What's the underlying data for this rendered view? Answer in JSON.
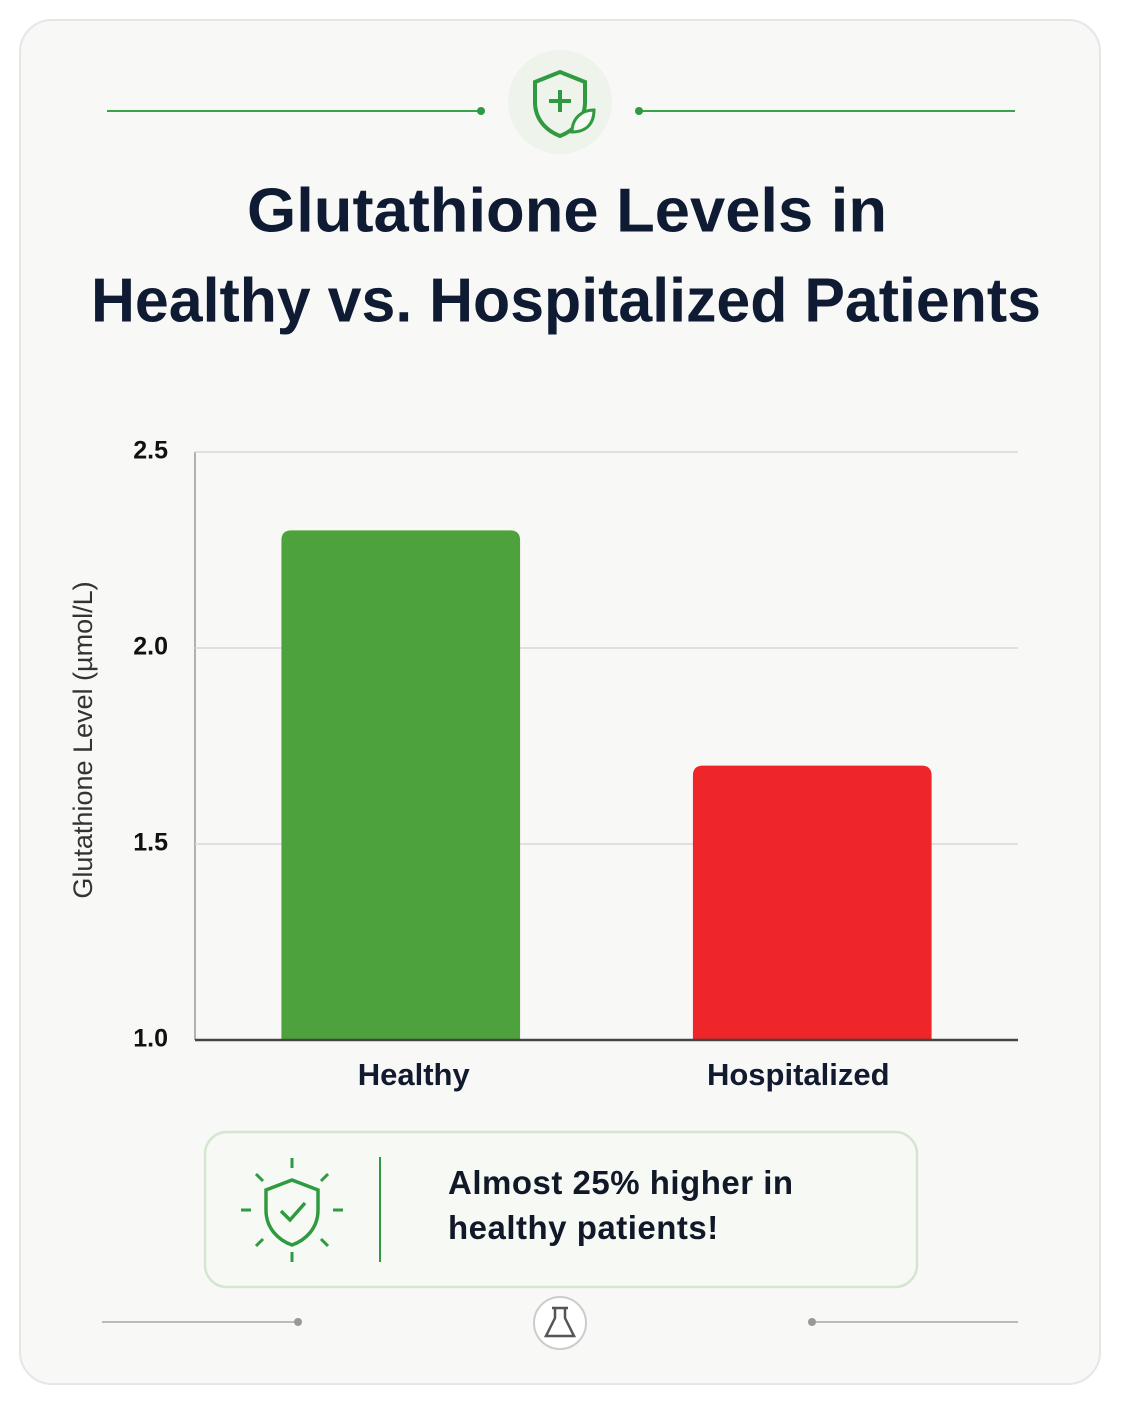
{
  "chart_data": {
    "type": "bar",
    "title": [
      "Glutathione Levels in",
      "Healthy vs. Hospitalized Patients"
    ],
    "y_label": "Glutathione Level (µmol/L)",
    "categories": [
      "Healthy",
      "Hospitalized"
    ],
    "values": [
      2.3,
      1.7
    ],
    "colors": [
      "#4ea23d",
      "#ee2529"
    ],
    "ylim": [
      1,
      2.5
    ],
    "yticks": [
      {
        "value": 1,
        "label": "1.0"
      },
      1.5,
      {
        "value": 2,
        "label": "2.0"
      },
      2.5
    ],
    "grid": true,
    "annotation": "Almost 25% higher in healthy patients!"
  }
}
